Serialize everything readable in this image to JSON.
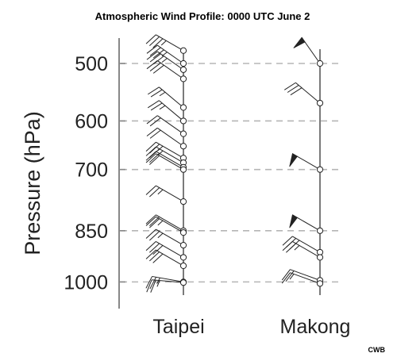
{
  "chart_data": {
    "type": "wind-barb-profile",
    "title": "Atmospheric Wind Profile: 0000 UTC June 2",
    "ylabel": "Pressure (hPa)",
    "xlabel": "",
    "credit": "CWB",
    "yticks": [
      500,
      600,
      700,
      850,
      1000
    ],
    "ylim": [
      480,
      1030
    ],
    "y_axis": "pressure, decreasing upward",
    "grid": "dashed horizontal lines at tick levels",
    "categories": [
      "Taipei",
      "Makong"
    ],
    "series": [
      {
        "name": "Taipei",
        "levels": [
          {
            "p": 480,
            "dir": 300,
            "speed": 35
          },
          {
            "p": 500,
            "dir": 305,
            "speed": 35
          },
          {
            "p": 510,
            "dir": 305,
            "speed": 35
          },
          {
            "p": 525,
            "dir": 305,
            "speed": 30
          },
          {
            "p": 575,
            "dir": 310,
            "speed": 25
          },
          {
            "p": 600,
            "dir": 310,
            "speed": 25
          },
          {
            "p": 625,
            "dir": 305,
            "speed": 20
          },
          {
            "p": 650,
            "dir": 305,
            "speed": 20
          },
          {
            "p": 675,
            "dir": 300,
            "speed": 25
          },
          {
            "p": 685,
            "dir": 300,
            "speed": 25
          },
          {
            "p": 695,
            "dir": 300,
            "speed": 20
          },
          {
            "p": 700,
            "dir": 300,
            "speed": 20
          },
          {
            "p": 775,
            "dir": 300,
            "speed": 25
          },
          {
            "p": 850,
            "dir": 300,
            "speed": 20
          },
          {
            "p": 855,
            "dir": 300,
            "speed": 25
          },
          {
            "p": 890,
            "dir": 300,
            "speed": 25
          },
          {
            "p": 925,
            "dir": 300,
            "speed": 30
          },
          {
            "p": 950,
            "dir": 300,
            "speed": 30
          },
          {
            "p": 1000,
            "dir": 280,
            "speed": 25
          },
          {
            "p": 1002,
            "dir": 275,
            "speed": 25
          }
        ]
      },
      {
        "name": "Makong",
        "levels": [
          {
            "p": 500,
            "dir": 325,
            "speed": 50
          },
          {
            "p": 567,
            "dir": 310,
            "speed": 30
          },
          {
            "p": 700,
            "dir": 300,
            "speed": 50
          },
          {
            "p": 850,
            "dir": 300,
            "speed": 50
          },
          {
            "p": 910,
            "dir": 300,
            "speed": 30
          },
          {
            "p": 925,
            "dir": 300,
            "speed": 25
          },
          {
            "p": 995,
            "dir": 290,
            "speed": 20
          },
          {
            "p": 1005,
            "dir": 290,
            "speed": 15
          }
        ]
      }
    ]
  }
}
